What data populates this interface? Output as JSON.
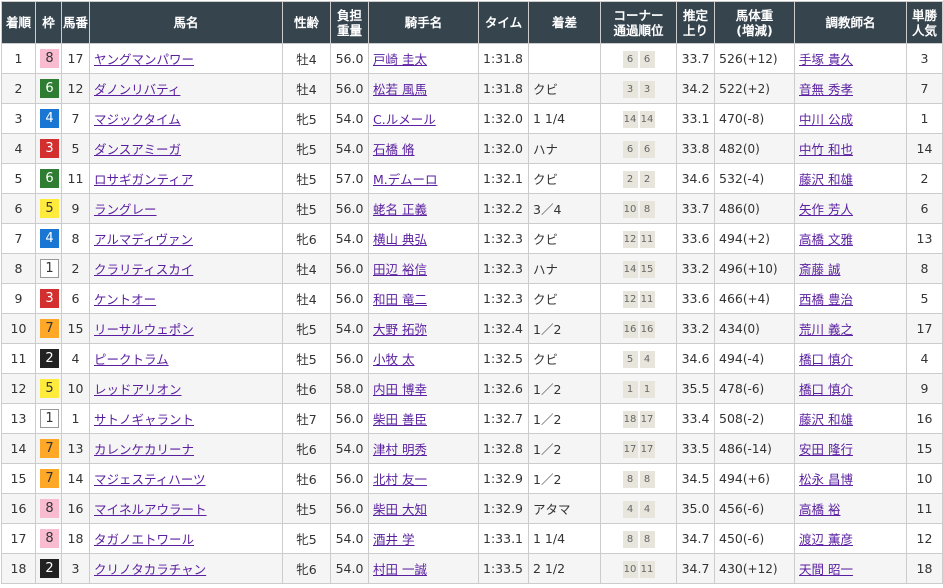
{
  "headers": [
    "着順",
    "枠",
    "馬番",
    "馬名",
    "性齢",
    "負担\n重量",
    "騎手名",
    "タイム",
    "着差",
    "コーナー\n通過順位",
    "推定\n上り",
    "馬体重\n(増減)",
    "調教師名",
    "単勝\n人気"
  ],
  "frame_colors": {
    "1": {
      "bg": "#ffffff",
      "fg": "#333333",
      "border": "#999999"
    },
    "2": {
      "bg": "#222222",
      "fg": "#ffffff"
    },
    "3": {
      "bg": "#d32f2f",
      "fg": "#ffffff"
    },
    "4": {
      "bg": "#1976d2",
      "fg": "#ffffff"
    },
    "5": {
      "bg": "#ffeb3b",
      "fg": "#333333"
    },
    "6": {
      "bg": "#2e7d32",
      "fg": "#ffffff"
    },
    "7": {
      "bg": "#ffa726",
      "fg": "#333333"
    },
    "8": {
      "bg": "#f8bbd0",
      "fg": "#333333"
    }
  },
  "rows": [
    {
      "rank": "1",
      "frame": "8",
      "num": "17",
      "horse": "ヤングマンパワー",
      "sexage": "牡4",
      "weight": "56.0",
      "jockey": "戸崎 圭太",
      "time": "1:31.8",
      "margin": "",
      "corners": [
        "6",
        "6"
      ],
      "last": "33.7",
      "body": "526",
      "change": "(+12)",
      "trainer": "手塚 貴久",
      "pop": "3"
    },
    {
      "rank": "2",
      "frame": "6",
      "num": "12",
      "horse": "ダノンリバティ",
      "sexage": "牡4",
      "weight": "56.0",
      "jockey": "松若 風馬",
      "time": "1:31.8",
      "margin": "クビ",
      "corners": [
        "3",
        "3"
      ],
      "last": "34.2",
      "body": "522",
      "change": "(+2)",
      "trainer": "音無 秀孝",
      "pop": "7"
    },
    {
      "rank": "3",
      "frame": "4",
      "num": "7",
      "horse": "マジックタイム",
      "sexage": "牝5",
      "weight": "54.0",
      "jockey": "C.ルメール",
      "time": "1:32.0",
      "margin": "1 1/4",
      "corners": [
        "14",
        "14"
      ],
      "last": "33.1",
      "body": "470",
      "change": "(-8)",
      "trainer": "中川 公成",
      "pop": "1"
    },
    {
      "rank": "4",
      "frame": "3",
      "num": "5",
      "horse": "ダンスアミーガ",
      "sexage": "牝5",
      "weight": "54.0",
      "jockey": "石橋 脩",
      "time": "1:32.0",
      "margin": "ハナ",
      "corners": [
        "6",
        "6"
      ],
      "last": "33.8",
      "body": "482",
      "change": "(0)",
      "trainer": "中竹 和也",
      "pop": "14"
    },
    {
      "rank": "5",
      "frame": "6",
      "num": "11",
      "horse": "ロサギガンティア",
      "sexage": "牡5",
      "weight": "57.0",
      "jockey": "M.デムーロ",
      "time": "1:32.1",
      "margin": "クビ",
      "corners": [
        "2",
        "2"
      ],
      "last": "34.6",
      "body": "532",
      "change": "(-4)",
      "trainer": "藤沢 和雄",
      "pop": "2"
    },
    {
      "rank": "6",
      "frame": "5",
      "num": "9",
      "horse": "ラングレー",
      "sexage": "牡5",
      "weight": "56.0",
      "jockey": "蛯名 正義",
      "time": "1:32.2",
      "margin": "3／4",
      "corners": [
        "10",
        "8"
      ],
      "last": "33.7",
      "body": "486",
      "change": "(0)",
      "trainer": "矢作 芳人",
      "pop": "6"
    },
    {
      "rank": "7",
      "frame": "4",
      "num": "8",
      "horse": "アルマディヴァン",
      "sexage": "牝6",
      "weight": "54.0",
      "jockey": "横山 典弘",
      "time": "1:32.3",
      "margin": "クビ",
      "corners": [
        "12",
        "11"
      ],
      "last": "33.6",
      "body": "494",
      "change": "(+2)",
      "trainer": "高橋 文雅",
      "pop": "13"
    },
    {
      "rank": "8",
      "frame": "1",
      "num": "2",
      "horse": "クラリティスカイ",
      "sexage": "牡4",
      "weight": "56.0",
      "jockey": "田辺 裕信",
      "time": "1:32.3",
      "margin": "ハナ",
      "corners": [
        "14",
        "15"
      ],
      "last": "33.2",
      "body": "496",
      "change": "(+10)",
      "trainer": "斎藤 誠",
      "pop": "8"
    },
    {
      "rank": "9",
      "frame": "3",
      "num": "6",
      "horse": "ケントオー",
      "sexage": "牡4",
      "weight": "56.0",
      "jockey": "和田 竜二",
      "time": "1:32.3",
      "margin": "クビ",
      "corners": [
        "12",
        "11"
      ],
      "last": "33.6",
      "body": "466",
      "change": "(+4)",
      "trainer": "西橋 豊治",
      "pop": "5"
    },
    {
      "rank": "10",
      "frame": "7",
      "num": "15",
      "horse": "リーサルウェポン",
      "sexage": "牝5",
      "weight": "54.0",
      "jockey": "大野 拓弥",
      "time": "1:32.4",
      "margin": "1／2",
      "corners": [
        "16",
        "16"
      ],
      "last": "33.2",
      "body": "434",
      "change": "(0)",
      "trainer": "荒川 義之",
      "pop": "17"
    },
    {
      "rank": "11",
      "frame": "2",
      "num": "4",
      "horse": "ピークトラム",
      "sexage": "牡5",
      "weight": "56.0",
      "jockey": "小牧 太",
      "time": "1:32.5",
      "margin": "クビ",
      "corners": [
        "5",
        "4"
      ],
      "last": "34.6",
      "body": "494",
      "change": "(-4)",
      "trainer": "橋口 慎介",
      "pop": "4"
    },
    {
      "rank": "12",
      "frame": "5",
      "num": "10",
      "horse": "レッドアリオン",
      "sexage": "牡6",
      "weight": "58.0",
      "jockey": "内田 博幸",
      "time": "1:32.6",
      "margin": "1／2",
      "corners": [
        "1",
        "1"
      ],
      "last": "35.5",
      "body": "478",
      "change": "(-6)",
      "trainer": "橋口 慎介",
      "pop": "9"
    },
    {
      "rank": "13",
      "frame": "1",
      "num": "1",
      "horse": "サトノギャラント",
      "sexage": "牡7",
      "weight": "56.0",
      "jockey": "柴田 善臣",
      "time": "1:32.7",
      "margin": "1／2",
      "corners": [
        "18",
        "17"
      ],
      "last": "33.4",
      "body": "508",
      "change": "(-2)",
      "trainer": "藤沢 和雄",
      "pop": "16"
    },
    {
      "rank": "14",
      "frame": "7",
      "num": "13",
      "horse": "カレンケカリーナ",
      "sexage": "牝6",
      "weight": "54.0",
      "jockey": "津村 明秀",
      "time": "1:32.8",
      "margin": "1／2",
      "corners": [
        "17",
        "17"
      ],
      "last": "33.5",
      "body": "486",
      "change": "(-14)",
      "trainer": "安田 隆行",
      "pop": "15"
    },
    {
      "rank": "15",
      "frame": "7",
      "num": "14",
      "horse": "マジェスティハーツ",
      "sexage": "牡6",
      "weight": "56.0",
      "jockey": "北村 友一",
      "time": "1:32.9",
      "margin": "1／2",
      "corners": [
        "8",
        "8"
      ],
      "last": "34.5",
      "body": "494",
      "change": "(+6)",
      "trainer": "松永 昌博",
      "pop": "10"
    },
    {
      "rank": "16",
      "frame": "8",
      "num": "16",
      "horse": "マイネルアウラート",
      "sexage": "牡5",
      "weight": "56.0",
      "jockey": "柴田 大知",
      "time": "1:32.9",
      "margin": "アタマ",
      "corners": [
        "4",
        "4"
      ],
      "last": "35.0",
      "body": "456",
      "change": "(-6)",
      "trainer": "高橋 裕",
      "pop": "11"
    },
    {
      "rank": "17",
      "frame": "8",
      "num": "18",
      "horse": "タガノエトワール",
      "sexage": "牝5",
      "weight": "54.0",
      "jockey": "酒井 学",
      "time": "1:33.1",
      "margin": "1 1/4",
      "corners": [
        "8",
        "8"
      ],
      "last": "34.7",
      "body": "450",
      "change": "(-6)",
      "trainer": "渡辺 薫彦",
      "pop": "12"
    },
    {
      "rank": "18",
      "frame": "2",
      "num": "3",
      "horse": "クリノタカラチャン",
      "sexage": "牝6",
      "weight": "54.0",
      "jockey": "村田 一誠",
      "time": "1:33.5",
      "margin": "2 1/2",
      "corners": [
        "10",
        "11"
      ],
      "last": "34.7",
      "body": "430",
      "change": "(+12)",
      "trainer": "天間 昭一",
      "pop": "18"
    }
  ]
}
